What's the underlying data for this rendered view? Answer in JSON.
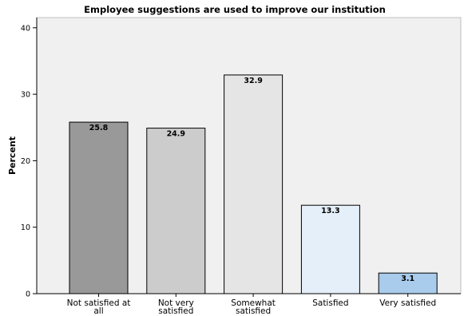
{
  "chart_data": {
    "type": "bar",
    "title": "Employee suggestions are used to improve our institution",
    "xlabel": "",
    "ylabel": "Percent",
    "ylim": [
      0,
      42
    ],
    "yticks": [
      0,
      10,
      20,
      30,
      40
    ],
    "grid": false,
    "categories": [
      [
        "Not satisfied at",
        "all"
      ],
      [
        "Not very",
        "satisfied"
      ],
      [
        "Somewhat",
        "satisfied"
      ],
      [
        "Satisfied"
      ],
      [
        "Very satisfied"
      ]
    ],
    "values": [
      25.8,
      24.9,
      32.9,
      13.3,
      3.1
    ],
    "data_labels": [
      "25.8",
      "24.9",
      "32.9",
      "13.3",
      "3.1"
    ],
    "colors": [
      "#999999",
      "#cccccc",
      "#e5e5e5",
      "#e5effa",
      "#a9cbec"
    ],
    "plot_background": "#f0f0f0"
  }
}
